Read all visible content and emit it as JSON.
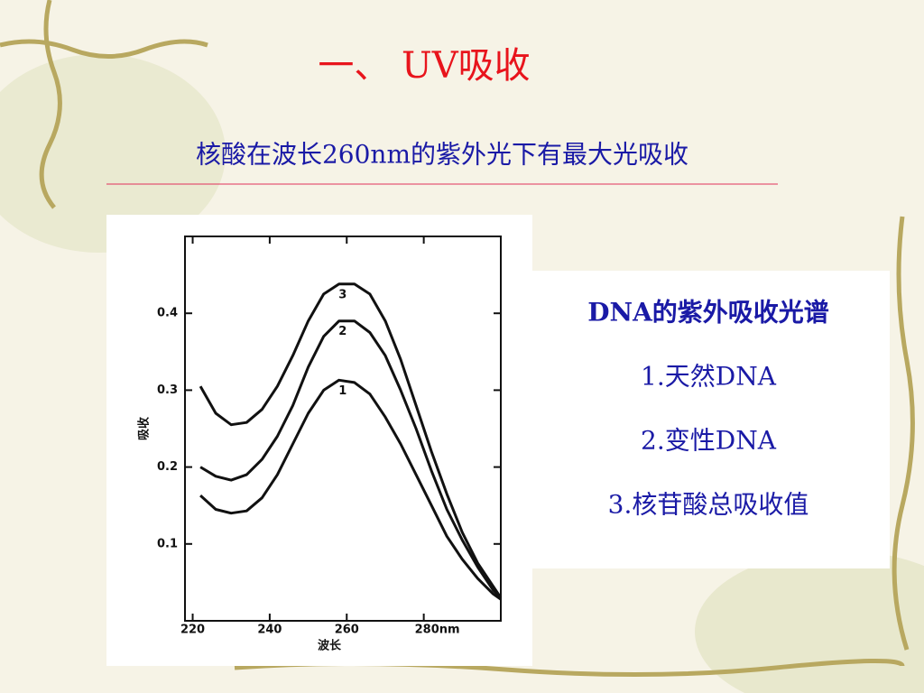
{
  "slide": {
    "title": "一、 UV吸收",
    "subtitle": "核酸在波长260nm的紫外光下有最大光吸收",
    "legend_box": [
      "DNA的紫外吸收光谱",
      "1.天然DNA",
      "2.变性DNA",
      "3.核苷酸总吸收值"
    ]
  },
  "chart_data": {
    "type": "line",
    "x_label": "波长",
    "y_label": "吸收",
    "x": [
      222,
      226,
      230,
      234,
      238,
      242,
      246,
      250,
      254,
      258,
      262,
      266,
      270,
      274,
      278,
      282,
      286,
      290,
      294,
      298,
      300
    ],
    "series": [
      {
        "name": "1",
        "color": "#111111",
        "values": [
          0.163,
          0.145,
          0.14,
          0.143,
          0.16,
          0.19,
          0.23,
          0.27,
          0.3,
          0.313,
          0.31,
          0.295,
          0.265,
          0.23,
          0.19,
          0.15,
          0.11,
          0.08,
          0.055,
          0.035,
          0.028
        ]
      },
      {
        "name": "2",
        "color": "#111111",
        "values": [
          0.2,
          0.188,
          0.183,
          0.19,
          0.21,
          0.24,
          0.28,
          0.33,
          0.37,
          0.39,
          0.39,
          0.375,
          0.345,
          0.3,
          0.25,
          0.195,
          0.145,
          0.105,
          0.07,
          0.04,
          0.03
        ]
      },
      {
        "name": "3",
        "color": "#111111",
        "values": [
          0.305,
          0.27,
          0.255,
          0.258,
          0.275,
          0.305,
          0.345,
          0.39,
          0.425,
          0.438,
          0.438,
          0.425,
          0.39,
          0.34,
          0.28,
          0.22,
          0.165,
          0.115,
          0.075,
          0.045,
          0.03
        ]
      }
    ],
    "xlim": [
      218,
      300
    ],
    "ylim": [
      0,
      0.5
    ],
    "xticks": [
      220,
      240,
      260,
      {
        "value": 280,
        "label": "280nm"
      }
    ],
    "yticks": [
      0.1,
      0.2,
      0.3,
      0.4
    ]
  }
}
